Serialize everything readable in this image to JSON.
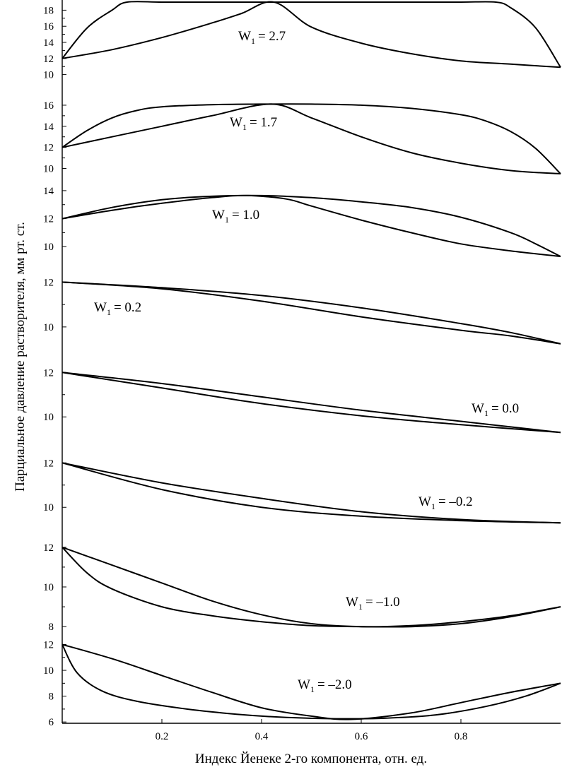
{
  "chart_data": {
    "type": "line",
    "xlabel": "Индекс Йенеке 2-го компонента, отн. ед.",
    "ylabel": "Парциальное давление растворителя, мм рт. ст.",
    "xlim": [
      0,
      1
    ],
    "x_ticks": [
      "0.2",
      "0.4",
      "0.6",
      "0.8"
    ],
    "x_tick_values": [
      0.2,
      0.4,
      0.6,
      0.8
    ],
    "panels": [
      {
        "w_symbol": "W",
        "w_subscript": "1",
        "w_value_text": "= 2.7",
        "ylim": [
          9,
          19
        ],
        "y_ticks": [
          "10",
          "12",
          "14",
          "16",
          "18"
        ],
        "y_tick_values": [
          10,
          12,
          14,
          16,
          18
        ],
        "series": [
          {
            "x": [
              0,
              0.05,
              0.1,
              0.13,
              0.2,
              0.3,
              0.4,
              0.5,
              0.6,
              0.7,
              0.8,
              0.87,
              0.9,
              0.95,
              1.0
            ],
            "y": [
              12,
              15.8,
              18.0,
              19.0,
              19.0,
              19.0,
              19.0,
              19.0,
              19.0,
              19.0,
              19.0,
              19.0,
              18.3,
              15.8,
              10.9
            ]
          },
          {
            "x": [
              0,
              0.1,
              0.2,
              0.3,
              0.36,
              0.425,
              0.5,
              0.6,
              0.7,
              0.8,
              0.9,
              1.0
            ],
            "y": [
              12,
              13.1,
              14.6,
              16.4,
              17.6,
              19.0,
              15.9,
              13.9,
              12.6,
              11.7,
              11.3,
              10.9
            ]
          }
        ]
      },
      {
        "w_symbol": "W",
        "w_subscript": "1",
        "w_value_text": "= 1.7",
        "ylim": [
          9.3,
          17
        ],
        "y_ticks": [
          "10",
          "12",
          "14",
          "16"
        ],
        "y_tick_values": [
          10,
          12,
          14,
          16
        ],
        "series": [
          {
            "x": [
              0,
              0.05,
              0.1,
              0.15,
              0.2,
              0.3,
              0.4,
              0.5,
              0.6,
              0.7,
              0.8,
              0.85,
              0.9,
              0.95,
              1.0
            ],
            "y": [
              12,
              13.6,
              14.8,
              15.5,
              15.85,
              16.05,
              16.1,
              16.1,
              16.0,
              15.7,
              15.1,
              14.5,
              13.5,
              11.9,
              9.5
            ]
          },
          {
            "x": [
              0,
              0.1,
              0.2,
              0.3,
              0.42,
              0.5,
              0.6,
              0.7,
              0.8,
              0.9,
              1.0
            ],
            "y": [
              12,
              13.0,
              14.0,
              15.0,
              16.1,
              14.8,
              13.0,
              11.5,
              10.5,
              9.8,
              9.5
            ]
          }
        ]
      },
      {
        "w_symbol": "W",
        "w_subscript": "1",
        "w_value_text": "= 1.0",
        "ylim": [
          8.8,
          14.4
        ],
        "y_ticks": [
          "10",
          "12",
          "14"
        ],
        "y_tick_values": [
          10,
          12,
          14
        ],
        "series": [
          {
            "x": [
              0,
              0.1,
              0.2,
              0.3,
              0.4,
              0.5,
              0.6,
              0.7,
              0.8,
              0.9,
              0.95,
              1.0
            ],
            "y": [
              12,
              12.8,
              13.35,
              13.6,
              13.65,
              13.5,
              13.2,
              12.8,
              12.1,
              11.0,
              10.2,
              9.3
            ]
          },
          {
            "x": [
              0,
              0.1,
              0.2,
              0.3,
              0.37,
              0.45,
              0.5,
              0.6,
              0.7,
              0.8,
              0.9,
              1.0
            ],
            "y": [
              12,
              12.6,
              13.1,
              13.5,
              13.65,
              13.4,
              12.9,
              11.9,
              11.0,
              10.2,
              9.7,
              9.3
            ]
          }
        ]
      },
      {
        "w_symbol": "W",
        "w_subscript": "1",
        "w_value_text": "= 0.2",
        "ylim": [
          8.8,
          12.2
        ],
        "y_ticks": [
          "10",
          "12"
        ],
        "y_tick_values": [
          10,
          12
        ],
        "series": [
          {
            "x": [
              0,
              0.2,
              0.4,
              0.6,
              0.8,
              0.9,
              1.0
            ],
            "y": [
              12,
              11.75,
              11.4,
              10.85,
              10.15,
              9.75,
              9.25
            ]
          },
          {
            "x": [
              0,
              0.2,
              0.4,
              0.6,
              0.8,
              0.9,
              1.0
            ],
            "y": [
              12,
              11.7,
              11.15,
              10.45,
              9.85,
              9.6,
              9.25
            ]
          }
        ]
      },
      {
        "w_symbol": "W",
        "w_subscript": "1",
        "w_value_text": "= 0.0",
        "ylim": [
          8.8,
          12.2
        ],
        "y_ticks": [
          "10",
          "12"
        ],
        "y_tick_values": [
          10,
          12
        ],
        "series": [
          {
            "x": [
              0,
              0.2,
              0.4,
              0.6,
              0.8,
              1.0
            ],
            "y": [
              12,
              11.5,
              10.9,
              10.3,
              9.8,
              9.3
            ]
          },
          {
            "x": [
              0,
              0.2,
              0.4,
              0.6,
              0.8,
              1.0
            ],
            "y": [
              12,
              11.3,
              10.6,
              10.05,
              9.65,
              9.3
            ]
          }
        ]
      },
      {
        "w_symbol": "W",
        "w_subscript": "1",
        "w_value_text": "= –0.2",
        "ylim": [
          8.8,
          12.2
        ],
        "y_ticks": [
          "10",
          "12"
        ],
        "y_tick_values": [
          10,
          12
        ],
        "series": [
          {
            "x": [
              0,
              0.2,
              0.4,
              0.6,
              0.8,
              1.0
            ],
            "y": [
              12,
              11.1,
              10.4,
              9.8,
              9.45,
              9.3
            ]
          },
          {
            "x": [
              0,
              0.2,
              0.4,
              0.6,
              0.8,
              1.0
            ],
            "y": [
              12,
              10.8,
              10.0,
              9.6,
              9.4,
              9.3
            ]
          }
        ]
      },
      {
        "w_symbol": "W",
        "w_subscript": "1",
        "w_value_text": "= –1.0",
        "ylim": [
          7.9,
          12.1
        ],
        "y_ticks": [
          "8",
          "10",
          "12"
        ],
        "y_tick_values": [
          8,
          10,
          12
        ],
        "series": [
          {
            "x": [
              0,
              0.1,
              0.2,
              0.3,
              0.4,
              0.5,
              0.6,
              0.7,
              0.8,
              0.9,
              1.0
            ],
            "y": [
              12,
              11.1,
              10.2,
              9.3,
              8.6,
              8.15,
              8.0,
              8.05,
              8.25,
              8.55,
              9.0
            ]
          },
          {
            "x": [
              0,
              0.05,
              0.1,
              0.2,
              0.3,
              0.4,
              0.5,
              0.6,
              0.7,
              0.8,
              0.9,
              1.0
            ],
            "y": [
              12,
              10.7,
              9.9,
              9.0,
              8.55,
              8.25,
              8.05,
              8.0,
              8.0,
              8.15,
              8.5,
              9.0
            ]
          }
        ]
      },
      {
        "w_symbol": "W",
        "w_subscript": "1",
        "w_value_text": "= –2.0",
        "ylim": [
          5.9,
          12.3
        ],
        "y_ticks": [
          "6",
          "8",
          "10",
          "12"
        ],
        "y_tick_values": [
          6,
          8,
          10,
          12
        ],
        "series": [
          {
            "x": [
              0,
              0.1,
              0.2,
              0.3,
              0.4,
              0.5,
              0.58,
              0.7,
              0.8,
              0.9,
              1.0
            ],
            "y": [
              12,
              10.9,
              9.6,
              8.3,
              7.1,
              6.45,
              6.2,
              6.7,
              7.5,
              8.3,
              9.0
            ]
          },
          {
            "x": [
              0,
              0.03,
              0.08,
              0.15,
              0.25,
              0.35,
              0.45,
              0.55,
              0.65,
              0.75,
              0.85,
              0.93,
              1.0
            ],
            "y": [
              12,
              9.8,
              8.4,
              7.6,
              7.0,
              6.6,
              6.35,
              6.25,
              6.3,
              6.55,
              7.2,
              8.0,
              9.0
            ]
          }
        ]
      }
    ]
  }
}
